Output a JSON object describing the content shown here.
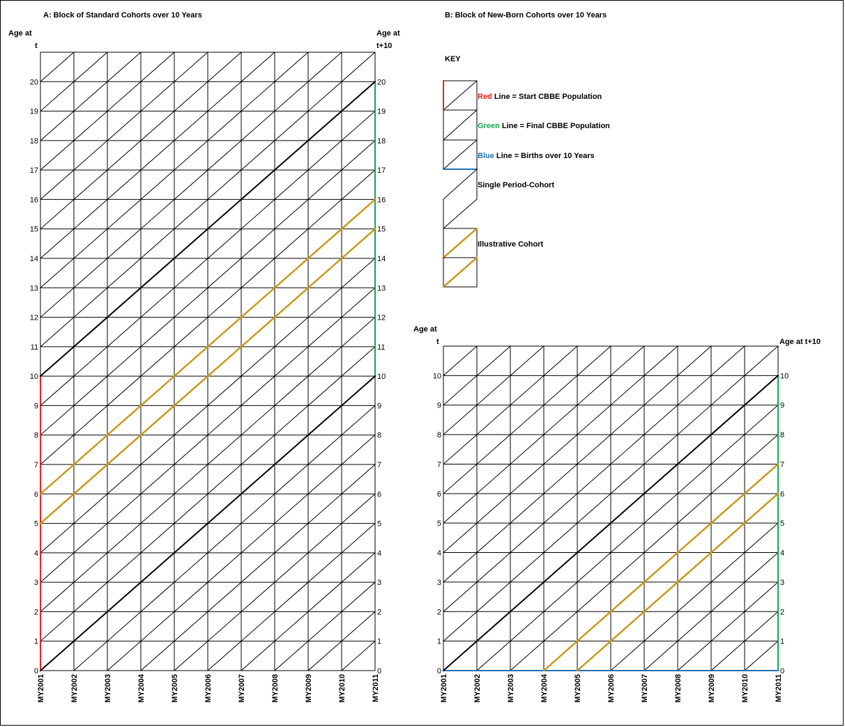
{
  "panel_a": {
    "title": "A: Block of Standard Cohorts over 10 Years",
    "left_axis_title": [
      "Age at",
      "t"
    ],
    "right_axis_title": [
      "Age at",
      "t+10"
    ],
    "age_labels": [
      "0",
      "1",
      "2",
      "3",
      "4",
      "5",
      "6",
      "7",
      "8",
      "9",
      "10",
      "11",
      "12",
      "13",
      "14",
      "15",
      "16",
      "17",
      "18",
      "19",
      "20"
    ],
    "year_labels": [
      "MY2001",
      "MY2002",
      "MY2003",
      "MY2004",
      "MY2005",
      "MY2006",
      "MY2007",
      "MY2008",
      "MY2009",
      "MY2010",
      "MY2011"
    ]
  },
  "panel_b": {
    "title": "B: Block of New-Born Cohorts over 10 Years",
    "left_axis_title": [
      "Age at",
      "t"
    ],
    "right_axis_title": "Age at t+10",
    "age_labels": [
      "0",
      "1",
      "2",
      "3",
      "4",
      "5",
      "6",
      "7",
      "8",
      "9",
      "10"
    ],
    "year_labels": [
      "MY2001",
      "MY2002",
      "MY2003",
      "MY2004",
      "MY2005",
      "MY2006",
      "MY2007",
      "MY2008",
      "MY2009",
      "MY2010",
      "MY2011"
    ]
  },
  "key": {
    "title": "KEY",
    "items": [
      {
        "color_word": "Red",
        "rest": " Line = Start CBBE Population",
        "color": "#e8221e"
      },
      {
        "color_word": "Green",
        "rest": " Line = Final CBBE Population",
        "color": "#13a84f"
      },
      {
        "color_word": "Blue",
        "rest": " Line = Births over 10 Years",
        "color": "#1f6fb5"
      }
    ],
    "single_label": "Single Period-Cohort",
    "illustrative_label": "Illustrative Cohort"
  },
  "colors": {
    "red": "#e8221e",
    "green": "#13a84f",
    "blue": "#1f6fb5",
    "gold": "#c8991a",
    "grid": "#000000"
  }
}
